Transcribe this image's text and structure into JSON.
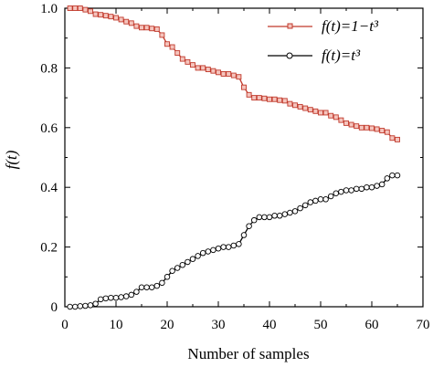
{
  "chart_data": {
    "type": "line",
    "xlabel": "Number of samples",
    "ylabel": "f(t)",
    "xlim": [
      0,
      70
    ],
    "ylim": [
      0,
      1.0
    ],
    "xticks": [
      "0",
      "10",
      "20",
      "30",
      "40",
      "50",
      "60",
      "70"
    ],
    "yticks": [
      "0",
      "0.2",
      "0.4",
      "0.6",
      "0.8",
      "1.0"
    ],
    "legend_position": "top-right",
    "grid": false,
    "x": [
      1,
      2,
      3,
      4,
      5,
      6,
      7,
      8,
      9,
      10,
      11,
      12,
      13,
      14,
      15,
      16,
      17,
      18,
      19,
      20,
      21,
      22,
      23,
      24,
      25,
      26,
      27,
      28,
      29,
      30,
      31,
      32,
      33,
      34,
      35,
      36,
      37,
      38,
      39,
      40,
      41,
      42,
      43,
      44,
      45,
      46,
      47,
      48,
      49,
      50,
      51,
      52,
      53,
      54,
      55,
      56,
      57,
      58,
      59,
      60,
      61,
      62,
      63,
      64,
      65
    ],
    "series": [
      {
        "name": "f(t)=1−t³",
        "color": "#c0392b",
        "marker": "square",
        "values": [
          1.0,
          1.0,
          1.0,
          0.995,
          0.99,
          0.98,
          0.978,
          0.975,
          0.972,
          0.968,
          0.962,
          0.955,
          0.95,
          0.94,
          0.935,
          0.935,
          0.932,
          0.93,
          0.91,
          0.88,
          0.87,
          0.85,
          0.83,
          0.82,
          0.81,
          0.8,
          0.8,
          0.795,
          0.79,
          0.785,
          0.78,
          0.78,
          0.775,
          0.77,
          0.735,
          0.71,
          0.7,
          0.7,
          0.698,
          0.695,
          0.695,
          0.692,
          0.69,
          0.68,
          0.675,
          0.67,
          0.665,
          0.66,
          0.655,
          0.65,
          0.65,
          0.64,
          0.635,
          0.625,
          0.615,
          0.61,
          0.605,
          0.6,
          0.6,
          0.598,
          0.595,
          0.59,
          0.585,
          0.565,
          0.56
        ]
      },
      {
        "name": "f(t)=t³",
        "color": "#000000",
        "marker": "circle",
        "values": [
          0.0,
          0.0,
          0.002,
          0.003,
          0.005,
          0.01,
          0.025,
          0.028,
          0.03,
          0.03,
          0.032,
          0.035,
          0.04,
          0.05,
          0.065,
          0.065,
          0.065,
          0.07,
          0.08,
          0.1,
          0.12,
          0.13,
          0.14,
          0.15,
          0.16,
          0.17,
          0.18,
          0.185,
          0.19,
          0.195,
          0.2,
          0.2,
          0.205,
          0.21,
          0.24,
          0.27,
          0.29,
          0.3,
          0.3,
          0.3,
          0.305,
          0.305,
          0.31,
          0.315,
          0.32,
          0.33,
          0.34,
          0.35,
          0.355,
          0.36,
          0.36,
          0.37,
          0.38,
          0.385,
          0.39,
          0.39,
          0.395,
          0.395,
          0.4,
          0.4,
          0.405,
          0.41,
          0.43,
          0.44,
          0.44
        ]
      }
    ]
  }
}
